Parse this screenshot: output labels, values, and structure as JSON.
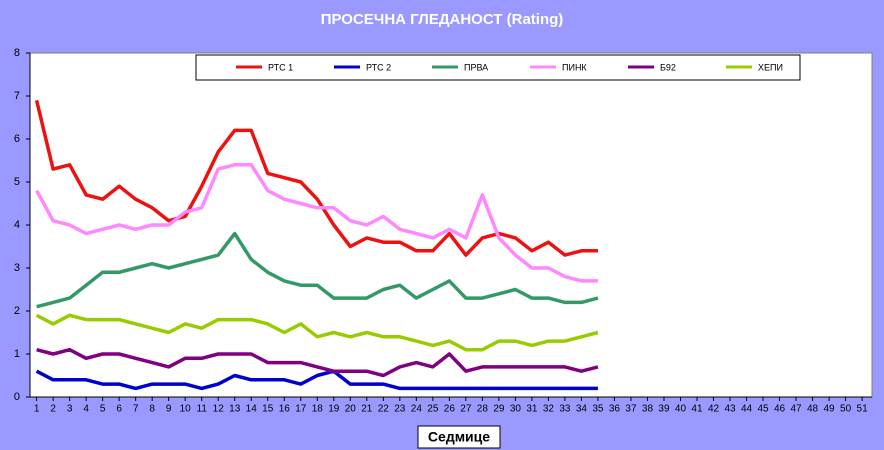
{
  "chart_data": {
    "type": "line",
    "title": "ПРОСЕЧНА ГЛЕДАНОСТ (Rating)",
    "x_label": "Седмице",
    "x": [
      1,
      2,
      3,
      4,
      5,
      6,
      7,
      8,
      9,
      10,
      11,
      12,
      13,
      14,
      15,
      16,
      17,
      18,
      19,
      20,
      21,
      22,
      23,
      24,
      25,
      26,
      27,
      28,
      29,
      30,
      31,
      32,
      33,
      34,
      35
    ],
    "series": [
      {
        "name": "РТС 1",
        "color": "#ee1111",
        "values": [
          6.9,
          5.3,
          5.4,
          4.7,
          4.6,
          4.9,
          4.6,
          4.4,
          4.1,
          4.2,
          4.9,
          5.7,
          6.2,
          6.2,
          5.2,
          5.1,
          5.0,
          4.6,
          4.0,
          3.5,
          3.7,
          3.6,
          3.6,
          3.4,
          3.4,
          3.8,
          3.3,
          3.7,
          3.8,
          3.7,
          3.4,
          3.6,
          3.3,
          3.4,
          3.4
        ]
      },
      {
        "name": "РТС 2",
        "color": "#0000cc",
        "values": [
          0.6,
          0.4,
          0.4,
          0.4,
          0.3,
          0.3,
          0.2,
          0.3,
          0.3,
          0.3,
          0.2,
          0.3,
          0.5,
          0.4,
          0.4,
          0.4,
          0.3,
          0.5,
          0.6,
          0.3,
          0.3,
          0.3,
          0.2,
          0.2,
          0.2,
          0.2,
          0.2,
          0.2,
          0.2,
          0.2,
          0.2,
          0.2,
          0.2,
          0.2,
          0.2
        ]
      },
      {
        "name": "ПРВА",
        "color": "#339966",
        "values": [
          2.1,
          2.2,
          2.3,
          2.6,
          2.9,
          2.9,
          3.0,
          3.1,
          3.0,
          3.1,
          3.2,
          3.3,
          3.8,
          3.2,
          2.9,
          2.7,
          2.6,
          2.6,
          2.3,
          2.3,
          2.3,
          2.5,
          2.6,
          2.3,
          2.5,
          2.7,
          2.3,
          2.3,
          2.4,
          2.5,
          2.3,
          2.3,
          2.2,
          2.2,
          2.3
        ]
      },
      {
        "name": "ПИНК",
        "color": "#ff88ff",
        "values": [
          4.8,
          4.1,
          4.0,
          3.8,
          3.9,
          4.0,
          3.9,
          4.0,
          4.0,
          4.3,
          4.4,
          5.3,
          5.4,
          5.4,
          4.8,
          4.6,
          4.5,
          4.4,
          4.4,
          4.1,
          4.0,
          4.2,
          3.9,
          3.8,
          3.7,
          3.9,
          3.7,
          4.7,
          3.7,
          3.3,
          3.0,
          3.0,
          2.8,
          2.7,
          2.7
        ]
      },
      {
        "name": "Б92",
        "color": "#800080",
        "values": [
          1.1,
          1.0,
          1.1,
          0.9,
          1.0,
          1.0,
          0.9,
          0.8,
          0.7,
          0.9,
          0.9,
          1.0,
          1.0,
          1.0,
          0.8,
          0.8,
          0.8,
          0.7,
          0.6,
          0.6,
          0.6,
          0.5,
          0.7,
          0.8,
          0.7,
          1.0,
          0.6,
          0.7,
          0.7,
          0.7,
          0.7,
          0.7,
          0.7,
          0.6,
          0.7
        ]
      },
      {
        "name": "ХЕПИ",
        "color": "#99cc00",
        "values": [
          1.9,
          1.7,
          1.9,
          1.8,
          1.8,
          1.8,
          1.7,
          1.6,
          1.5,
          1.7,
          1.6,
          1.8,
          1.8,
          1.8,
          1.7,
          1.5,
          1.7,
          1.4,
          1.5,
          1.4,
          1.5,
          1.4,
          1.4,
          1.3,
          1.2,
          1.3,
          1.1,
          1.1,
          1.3,
          1.3,
          1.2,
          1.3,
          1.3,
          1.4,
          1.5
        ]
      }
    ],
    "xlim": [
      0.6,
      51.6
    ],
    "xticks": [
      1,
      2,
      3,
      4,
      5,
      6,
      7,
      8,
      9,
      10,
      11,
      12,
      13,
      14,
      15,
      16,
      17,
      18,
      19,
      20,
      21,
      22,
      23,
      24,
      25,
      26,
      27,
      28,
      29,
      30,
      31,
      32,
      33,
      34,
      35,
      36,
      37,
      38,
      39,
      40,
      41,
      42,
      43,
      44,
      45,
      46,
      47,
      48,
      49,
      50,
      51
    ],
    "ylim": [
      0,
      8
    ],
    "yticks": [
      0,
      1,
      2,
      3,
      4,
      5,
      6,
      7,
      8
    ],
    "grid": false,
    "legend": "top"
  }
}
